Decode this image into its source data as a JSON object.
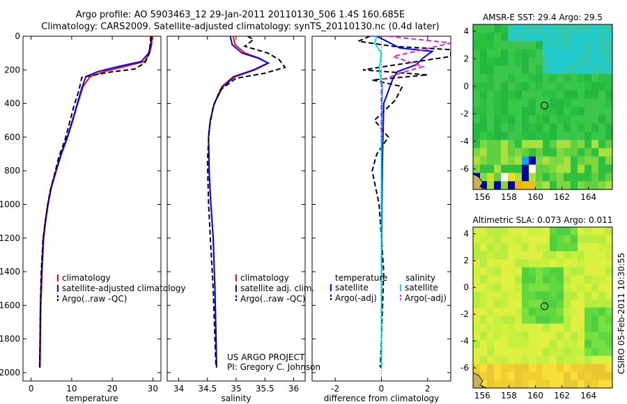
{
  "header": {
    "line1": "Argo profile: AO 5903463_12 29-Jan-2011 20110130_506 1.4S 160.685E",
    "line2": "Climatology: CARS2009. Satellite-adjusted climatology: synTS_20110130.nc (0.4d later)"
  },
  "side_stamp": "CSIRO 05-Feb-2011 10:30:55",
  "colors": {
    "climatology": "#ff0000",
    "satellite": "#0000ff",
    "argo": "#000000",
    "satellite_salinity": "#00e5e5",
    "argo_salinity": "#e020e0"
  },
  "chart_data": [
    {
      "type": "line",
      "name": "temperature-profile",
      "xlabel": "temperature",
      "xlim": [
        -2,
        32
      ],
      "ylim": [
        2050,
        0
      ],
      "xticks": [
        0,
        10,
        20,
        30
      ],
      "yticks": [
        0,
        200,
        400,
        600,
        800,
        1000,
        1200,
        1400,
        1600,
        1800,
        2000
      ],
      "legend": [
        "climatology",
        "satellite-adjusted climatology",
        "Argo(..raw -QC)"
      ],
      "series": [
        {
          "name": "climatology",
          "color": "#ff0000",
          "dash": false,
          "x": [
            29.8,
            29.7,
            29.2,
            28.0,
            23.0,
            18.0,
            14.5,
            12.8,
            11.5,
            10.3,
            9.0,
            7.5,
            6.2,
            5.0,
            4.2,
            3.6,
            3.1,
            2.7,
            2.4,
            2.3,
            2.2
          ],
          "y": [
            0,
            50,
            100,
            150,
            180,
            210,
            240,
            300,
            400,
            500,
            600,
            700,
            800,
            900,
            1000,
            1100,
            1200,
            1400,
            1600,
            1800,
            1970
          ]
        },
        {
          "name": "satellite-adjusted climatology",
          "color": "#0000ff",
          "dash": false,
          "x": [
            29.6,
            29.5,
            29.0,
            27.2,
            21.5,
            16.5,
            13.5,
            12.6,
            11.4,
            10.2,
            8.9,
            7.4,
            6.1,
            4.9,
            4.1,
            3.5,
            3.0,
            2.6,
            2.3,
            2.2,
            2.1
          ],
          "y": [
            0,
            50,
            100,
            150,
            180,
            210,
            240,
            300,
            400,
            500,
            600,
            700,
            800,
            900,
            1000,
            1100,
            1200,
            1400,
            1600,
            1800,
            1970
          ]
        },
        {
          "name": "Argo(..raw -QC)",
          "color": "#000000",
          "dash": true,
          "x": [
            29.5,
            29.3,
            29.0,
            28.0,
            25.5,
            19.0,
            12.5,
            11.8,
            10.5,
            9.4,
            8.3,
            6.8,
            5.8,
            4.7,
            4.0,
            3.4,
            2.9,
            2.5,
            2.3,
            2.2,
            2.1
          ],
          "y": [
            0,
            60,
            110,
            160,
            195,
            215,
            245,
            320,
            420,
            520,
            620,
            720,
            820,
            920,
            1020,
            1120,
            1220,
            1400,
            1600,
            1800,
            1970
          ]
        }
      ]
    },
    {
      "type": "line",
      "name": "salinity-profile",
      "xlabel": "salinity",
      "xlim": [
        33.8,
        36.2
      ],
      "ylim": [
        2050,
        0
      ],
      "xticks": [
        34,
        34.5,
        35,
        35.5,
        36
      ],
      "legend": [
        "climatology",
        "satellite adj. clim.",
        "Argo(..raw -QC)"
      ],
      "annotation": [
        "US ARGO PROJECT",
        "PI: Gregory C. Johnson"
      ],
      "series": [
        {
          "name": "climatology",
          "color": "#ff0000",
          "dash": false,
          "x": [
            34.95,
            34.98,
            35.15,
            35.4,
            35.55,
            35.3,
            34.95,
            34.75,
            34.62,
            34.55,
            34.52,
            34.53,
            34.56,
            34.6,
            34.63,
            34.65,
            34.66
          ],
          "y": [
            0,
            50,
            100,
            130,
            160,
            200,
            240,
            300,
            400,
            500,
            600,
            800,
            1000,
            1200,
            1500,
            1800,
            1970
          ]
        },
        {
          "name": "satellite adj. clim.",
          "color": "#0000ff",
          "dash": false,
          "x": [
            34.9,
            34.93,
            35.1,
            35.38,
            35.56,
            35.32,
            34.98,
            34.77,
            34.62,
            34.55,
            34.52,
            34.53,
            34.56,
            34.6,
            34.63,
            34.65,
            34.66
          ],
          "y": [
            0,
            50,
            100,
            130,
            160,
            200,
            240,
            300,
            400,
            500,
            600,
            800,
            1000,
            1200,
            1500,
            1800,
            1970
          ]
        },
        {
          "name": "Argo(..raw -QC)",
          "color": "#000000",
          "dash": true,
          "x": [
            35.2,
            35.3,
            35.15,
            35.55,
            35.75,
            35.85,
            35.5,
            35.0,
            34.72,
            34.6,
            34.53,
            34.5,
            34.52,
            34.55,
            34.6,
            34.63,
            34.65
          ],
          "y": [
            0,
            20,
            60,
            100,
            140,
            185,
            220,
            250,
            320,
            420,
            550,
            750,
            1000,
            1200,
            1500,
            1800,
            1970
          ]
        }
      ]
    },
    {
      "type": "line",
      "name": "difference-from-climatology",
      "xlabel": "difference from climatology",
      "xlim": [
        -3,
        3
      ],
      "ylim": [
        2050,
        0
      ],
      "xticks": [
        -2,
        0,
        2
      ],
      "legend_left": {
        "title": "temperature",
        "items": [
          "satellite",
          "Argo(-adj)"
        ]
      },
      "legend_right": {
        "title": "salinity",
        "items": [
          "satellite",
          "Argo(-adj)"
        ]
      },
      "series": [
        {
          "name": "temperature satellite",
          "color": "#0000ff",
          "dash": false,
          "x": [
            -0.2,
            0.8,
            2.2,
            1.8,
            1.5,
            0.7,
            0.5,
            0.1,
            0.05,
            0.02,
            0.0,
            0.0
          ],
          "y": [
            0,
            70,
            90,
            130,
            170,
            210,
            250,
            400,
            700,
            1000,
            1500,
            1970
          ]
        },
        {
          "name": "temperature Argo(-adj)",
          "color": "#000000",
          "dash": true,
          "x": [
            -0.5,
            -1.0,
            0.5,
            3.0,
            3.0,
            -0.8,
            2.0,
            -0.4,
            0.9,
            0.6,
            -0.3,
            0.3,
            -0.2,
            -0.4,
            -0.1,
            0.1,
            0.0,
            -0.05
          ],
          "y": [
            0,
            30,
            60,
            80,
            120,
            200,
            230,
            260,
            300,
            380,
            500,
            600,
            700,
            800,
            1000,
            1400,
            1800,
            1970
          ]
        },
        {
          "name": "salinity satellite",
          "color": "#00e5e5",
          "dash": false,
          "x": [
            -0.2,
            -0.3,
            0.0,
            -0.1,
            0.05,
            0.0,
            0.0,
            0.0
          ],
          "y": [
            0,
            40,
            100,
            200,
            300,
            600,
            1200,
            1970
          ]
        },
        {
          "name": "salinity Argo(-adj)",
          "color": "#e020e0",
          "dash": true,
          "x": [
            0.3,
            3.0,
            1.8,
            0.5,
            1.8,
            0.8,
            0.0,
            0.0
          ],
          "y": [
            0,
            40,
            80,
            120,
            180,
            220,
            260,
            600
          ]
        }
      ]
    },
    {
      "type": "heatmap",
      "name": "amsr-e-sst-map",
      "title": "AMSR-E SST: 29.4 Argo: 29.5",
      "xlim": [
        155.3,
        165.8
      ],
      "ylim": [
        -7.5,
        4.5
      ],
      "xticks": [
        156,
        158,
        160,
        162,
        164
      ],
      "yticks": [
        -6,
        -4,
        -2,
        0,
        2,
        4
      ],
      "argo_location": {
        "lon": 160.685,
        "lat": -1.4
      }
    },
    {
      "type": "heatmap",
      "name": "altimetric-sla-map",
      "title": "Altimetric SLA: 0.073 Argo: 0.011",
      "xlim": [
        155.3,
        165.8
      ],
      "ylim": [
        -7.5,
        4.5
      ],
      "xticks": [
        156,
        158,
        160,
        162,
        164
      ],
      "yticks": [
        -6,
        -4,
        -2,
        0,
        2,
        4
      ],
      "argo_location": {
        "lon": 160.685,
        "lat": -1.4
      }
    }
  ]
}
